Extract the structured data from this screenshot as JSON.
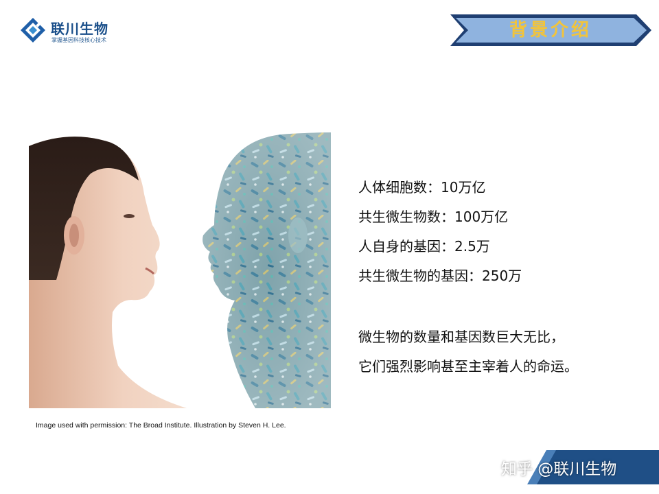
{
  "header": {
    "company_name": "联川生物",
    "company_tagline": "掌握基因科技核心技术",
    "section_title": "背景介绍"
  },
  "illustration": {
    "caption": "Image used with permission: The Broad Institute. Illustration by Steven H. Lee."
  },
  "facts": [
    "人体细胞数：10万亿",
    "共生微生物数：100万亿",
    "人自身的基因：2.5万",
    "共生微生物的基因：250万"
  ],
  "summary": [
    "微生物的数量和基因数巨大无比，",
    "它们强烈影响甚至主宰着人的命运。"
  ],
  "watermark": {
    "text": "知乎 @联川生物"
  },
  "colors": {
    "brand_blue": "#1a4f8a",
    "banner_fill": "#8fb3df",
    "banner_outline": "#1f3f72",
    "banner_text": "#f2c43b"
  }
}
